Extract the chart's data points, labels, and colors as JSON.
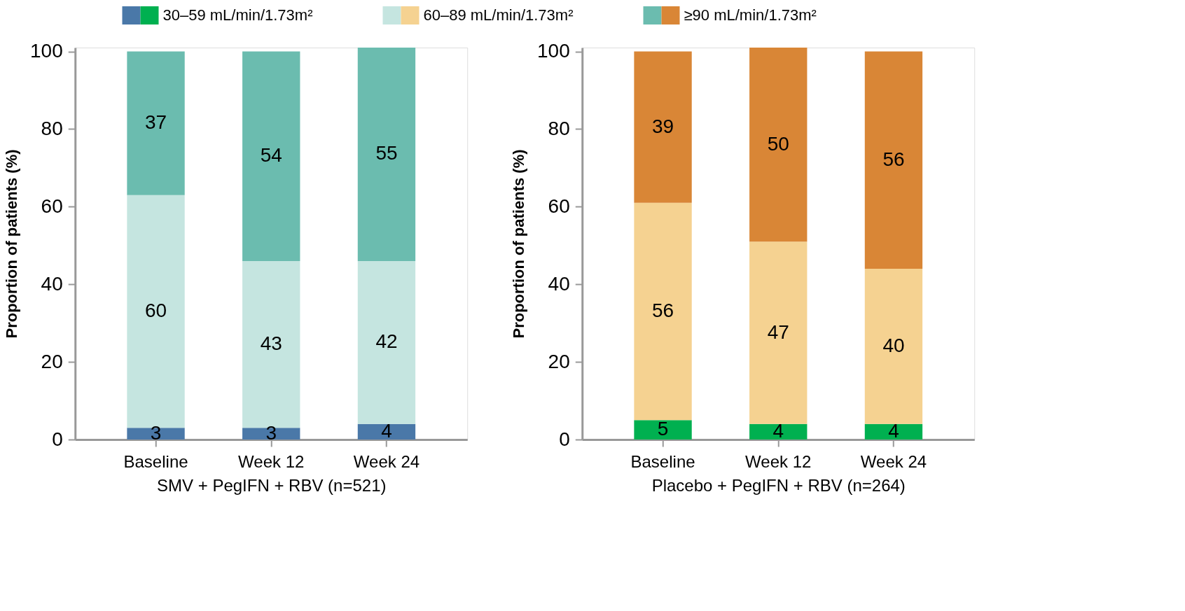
{
  "chart_data": [
    {
      "type": "bar",
      "stacked": true,
      "legend": "top",
      "xlabel": "SMV + PegIFN + RBV (n=521)",
      "ylabel": "Proportion of patients (%)",
      "categories": [
        "Baseline",
        "Week 12",
        "Week 24"
      ],
      "ylim": [
        0,
        101
      ],
      "yticks": [
        0,
        20,
        40,
        60,
        80,
        100
      ],
      "grid": false,
      "data_labels": true,
      "series": [
        {
          "name": "30–59 mL/min/1.73m²",
          "color": "#4a78a8",
          "values": [
            3,
            3,
            4
          ]
        },
        {
          "name": "60–89 mL/min/1.73m²",
          "color": "#c5e5e0",
          "values": [
            60,
            43,
            42
          ]
        },
        {
          "name": "≥90 mL/min/1.73m²",
          "color": "#6bbcaf",
          "values": [
            37,
            54,
            55
          ]
        }
      ]
    },
    {
      "type": "bar",
      "stacked": true,
      "xlabel": "Placebo + PegIFN + RBV (n=264)",
      "ylabel": "Proportion of patients (%)",
      "categories": [
        "Baseline",
        "Week 12",
        "Week 24"
      ],
      "ylim": [
        0,
        101
      ],
      "yticks": [
        0,
        20,
        40,
        60,
        80,
        100
      ],
      "grid": false,
      "data_labels": true,
      "series": [
        {
          "color": "#00b050",
          "values": [
            5,
            4,
            4
          ]
        },
        {
          "color": "#f5d291",
          "values": [
            56,
            47,
            40
          ]
        },
        {
          "color": "#d98636",
          "values": [
            39,
            50,
            56
          ]
        }
      ]
    }
  ]
}
